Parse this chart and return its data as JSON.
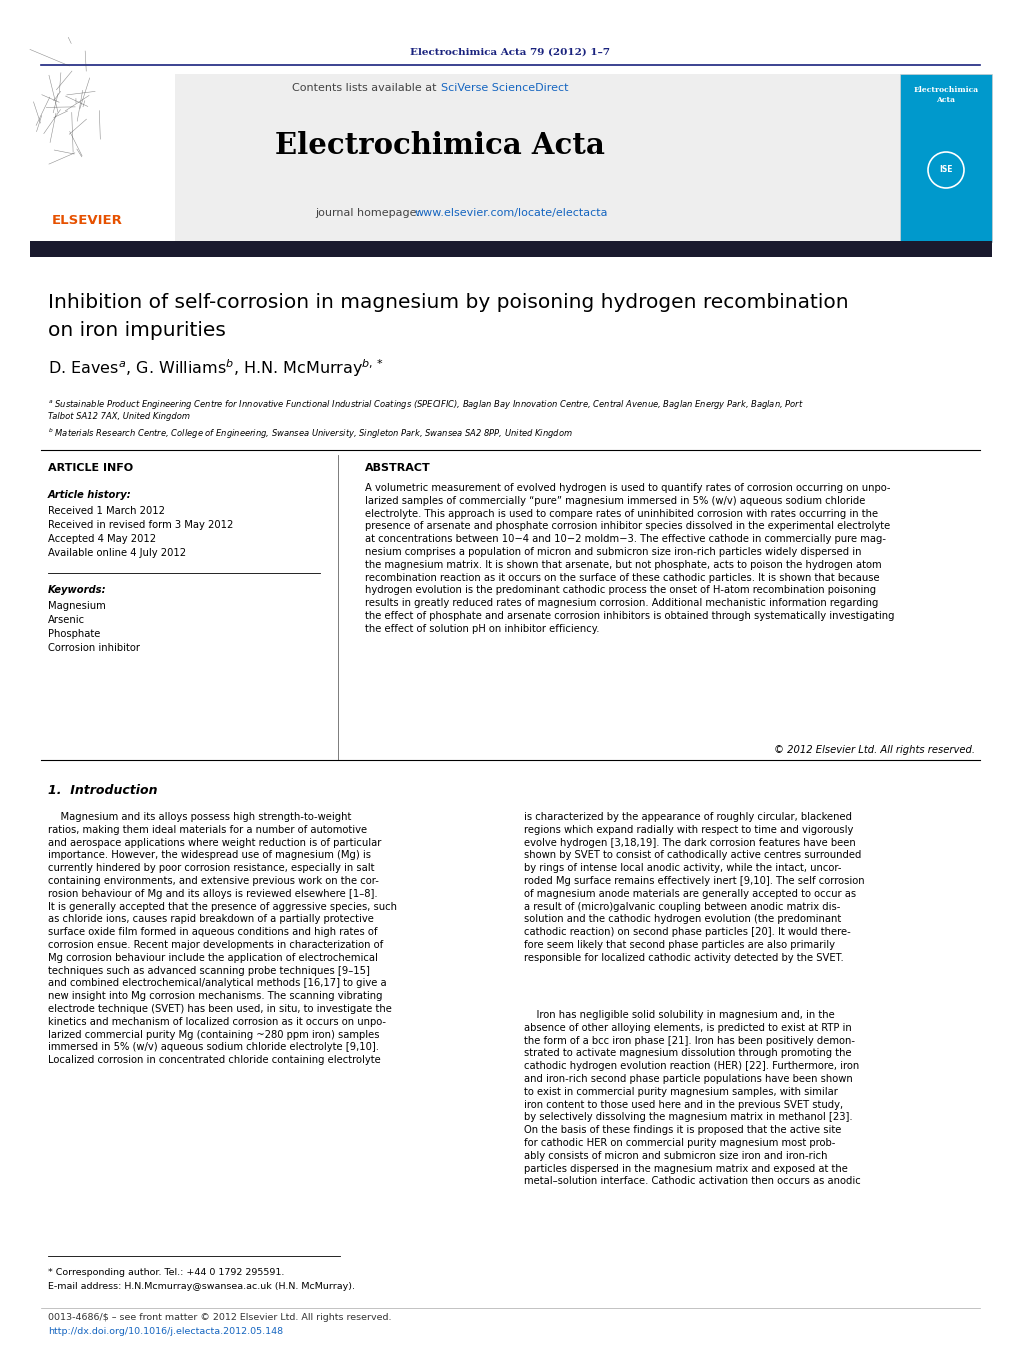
{
  "page_bg": "#ffffff",
  "header_journal_text": "Electrochimica Acta 79 (2012) 1–7",
  "header_journal_color": "#1a237e",
  "header_line_color": "#1a237e",
  "contents_text": "Contents lists available at ",
  "sciverse_text": "SciVerse ScienceDirect",
  "sciverse_color": "#1565C0",
  "journal_name": "Electrochimica Acta",
  "journal_homepage_text": "journal homepage: ",
  "journal_url": "www.elsevier.com/locate/electacta",
  "journal_url_color": "#1565C0",
  "elsevier_color": "#E65100",
  "header_bg": "#eeeeee",
  "nav_bar_color": "#1a1a2e",
  "section_article_info": "ARTICLE INFO",
  "article_history_label": "Article history:",
  "received_1": "Received 1 March 2012",
  "received_2": "Received in revised form 3 May 2012",
  "accepted": "Accepted 4 May 2012",
  "available": "Available online 4 July 2012",
  "keywords_label": "Keywords:",
  "keyword_1": "Magnesium",
  "keyword_2": "Arsenic",
  "keyword_3": "Phosphate",
  "keyword_4": "Corrosion inhibitor",
  "section_abstract": "ABSTRACT",
  "abstract_text": "A volumetric measurement of evolved hydrogen is used to quantify rates of corrosion occurring on unpo-\nlarized samples of commercially “pure” magnesium immersed in 5% (w/v) aqueous sodium chloride\nelectrolyte. This approach is used to compare rates of uninhibited corrosion with rates occurring in the\npresence of arsenate and phosphate corrosion inhibitor species dissolved in the experimental electrolyte\nat concentrations between 10−4 and 10−2 moldm−3. The effective cathode in commercially pure mag-\nnesium comprises a population of micron and submicron size iron-rich particles widely dispersed in\nthe magnesium matrix. It is shown that arsenate, but not phosphate, acts to poison the hydrogen atom\nrecombination reaction as it occurs on the surface of these cathodic particles. It is shown that because\nhydrogen evolution is the predominant cathodic process the onset of H-atom recombination poisoning\nresults in greatly reduced rates of magnesium corrosion. Additional mechanistic information regarding\nthe effect of phosphate and arsenate corrosion inhibitors is obtained through systematically investigating\nthe effect of solution pH on inhibitor efficiency.",
  "copyright_text": "© 2012 Elsevier Ltd. All rights reserved.",
  "intro_heading": "1.  Introduction",
  "intro_col1": "    Magnesium and its alloys possess high strength-to-weight\nratios, making them ideal materials for a number of automotive\nand aerospace applications where weight reduction is of particular\nimportance. However, the widespread use of magnesium (Mg) is\ncurrently hindered by poor corrosion resistance, especially in salt\ncontaining environments, and extensive previous work on the cor-\nrosion behaviour of Mg and its alloys is reviewed elsewhere [1–8].\nIt is generally accepted that the presence of aggressive species, such\nas chloride ions, causes rapid breakdown of a partially protective\nsurface oxide film formed in aqueous conditions and high rates of\ncorrosion ensue. Recent major developments in characterization of\nMg corrosion behaviour include the application of electrochemical\ntechniques such as advanced scanning probe techniques [9–15]\nand combined electrochemical/analytical methods [16,17] to give a\nnew insight into Mg corrosion mechanisms. The scanning vibrating\nelectrode technique (SVET) has been used, in situ, to investigate the\nkinetics and mechanism of localized corrosion as it occurs on unpo-\nlarized commercial purity Mg (containing ~280 ppm iron) samples\nimmersed in 5% (w/v) aqueous sodium chloride electrolyte [9,10].\nLocalized corrosion in concentrated chloride containing electrolyte",
  "intro_col2": "is characterized by the appearance of roughly circular, blackened\nregions which expand radially with respect to time and vigorously\nevolve hydrogen [3,18,19]. The dark corrosion features have been\nshown by SVET to consist of cathodically active centres surrounded\nby rings of intense local anodic activity, while the intact, uncor-\nroded Mg surface remains effectively inert [9,10]. The self corrosion\nof magnesium anode materials are generally accepted to occur as\na result of (micro)galvanic coupling between anodic matrix dis-\nsolution and the cathodic hydrogen evolution (the predominant\ncathodic reaction) on second phase particles [20]. It would there-\nfore seem likely that second phase particles are also primarily\nresponsible for localized cathodic activity detected by the SVET.",
  "intro_col2_cont": "    Iron has negligible solid solubility in magnesium and, in the\nabsence of other alloying elements, is predicted to exist at RTP in\nthe form of a bcc iron phase [21]. Iron has been positively demon-\nstrated to activate magnesium dissolution through promoting the\ncathodic hydrogen evolution reaction (HER) [22]. Furthermore, iron\nand iron-rich second phase particle populations have been shown\nto exist in commercial purity magnesium samples, with similar\niron content to those used here and in the previous SVET study,\nby selectively dissolving the magnesium matrix in methanol [23].\nOn the basis of these findings it is proposed that the active site\nfor cathodic HER on commercial purity magnesium most prob-\nably consists of micron and submicron size iron and iron-rich\nparticles dispersed in the magnesium matrix and exposed at the\nmetal–solution interface. Cathodic activation then occurs as anodic",
  "footnote_star": "* Corresponding author. Tel.: +44 0 1792 295591.",
  "footnote_email": "E-mail address: H.N.Mcmurray@swansea.ac.uk (H.N. McMurray).",
  "footnote_issn": "0013-4686/$ – see front matter © 2012 Elsevier Ltd. All rights reserved.",
  "footnote_doi": "http://dx.doi.org/10.1016/j.electacta.2012.05.148",
  "cover_bg_color": "#0099cc"
}
